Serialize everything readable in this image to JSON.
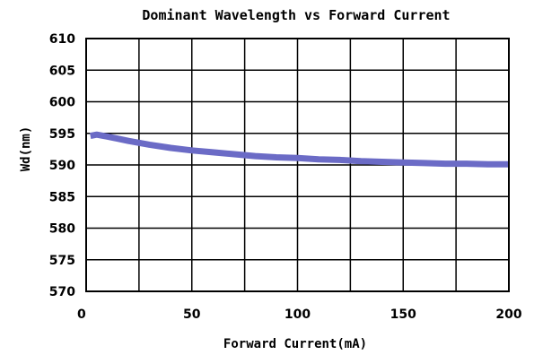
{
  "chart_data": {
    "type": "line",
    "title": "Dominant Wavelength vs Forward Current",
    "xlabel": "Forward Current(mA)",
    "ylabel": "Wd(nm)",
    "xlim": [
      0,
      200
    ],
    "ylim": [
      570,
      610
    ],
    "xticks": [
      "0",
      "50",
      "100",
      "150",
      "200"
    ],
    "yticks": [
      "610",
      "605",
      "600",
      "595",
      "590",
      "585",
      "580",
      "575",
      "570"
    ],
    "grid": true,
    "series": [
      {
        "color": "#6b6bc6",
        "x": [
          2,
          5,
          10,
          20,
          30,
          40,
          50,
          60,
          70,
          80,
          90,
          100,
          110,
          120,
          130,
          140,
          150,
          160,
          170,
          180,
          190,
          200
        ],
        "y": [
          594.6,
          594.8,
          594.5,
          593.8,
          593.2,
          592.7,
          592.3,
          592.0,
          591.7,
          591.4,
          591.2,
          591.1,
          590.9,
          590.8,
          590.6,
          590.5,
          590.4,
          590.3,
          590.2,
          590.2,
          590.1,
          590.1
        ]
      }
    ]
  }
}
